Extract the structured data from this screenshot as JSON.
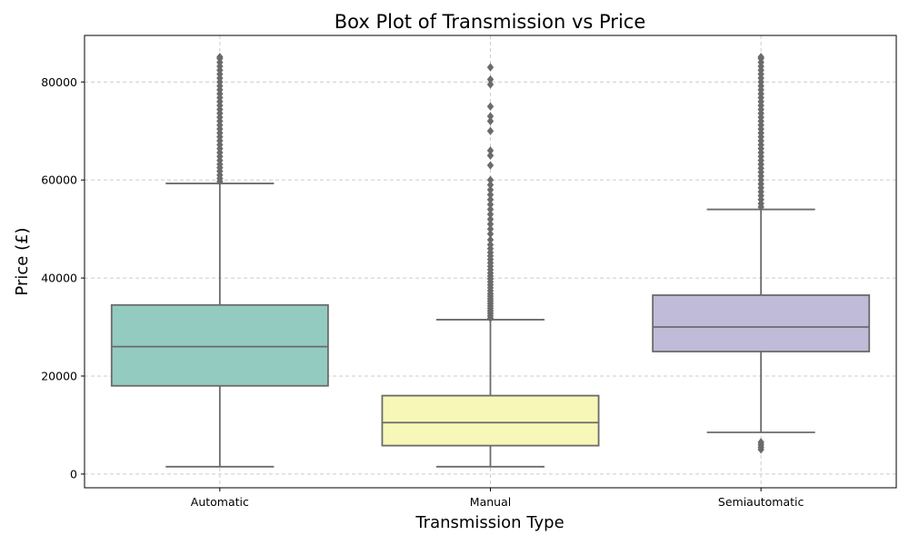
{
  "chart_data": {
    "type": "box",
    "title": "Box Plot of Transmission vs Price",
    "xlabel": "Transmission Type",
    "ylabel": "Price (£)",
    "ylim": [
      -2800,
      89500
    ],
    "yticks": [
      0,
      20000,
      40000,
      60000,
      80000
    ],
    "grid": true,
    "categories": [
      "Automatic",
      "Manual",
      "Semiautomatic"
    ],
    "boxes": [
      {
        "category": "Automatic",
        "color": "#94cbc0",
        "whisker_low": 1500,
        "q1": 18000,
        "median": 26000,
        "q3": 34500,
        "whisker_high": 59300,
        "outliers": [
          59700,
          60300,
          61000,
          61800,
          62500,
          63200,
          64000,
          64800,
          65600,
          66400,
          67200,
          68000,
          68800,
          69600,
          70400,
          71200,
          72000,
          72800,
          73600,
          74400,
          75200,
          76000,
          76800,
          77600,
          78400,
          79200,
          80000,
          80800,
          81600,
          82400,
          83200,
          84000,
          84800,
          85100
        ]
      },
      {
        "category": "Manual",
        "color": "#f7f7b8",
        "whisker_low": 1500,
        "q1": 5800,
        "median": 10500,
        "q3": 16000,
        "whisker_high": 31500,
        "outliers": [
          31800,
          32300,
          32800,
          33300,
          33800,
          34300,
          34800,
          35300,
          35800,
          36300,
          36800,
          37400,
          38000,
          38600,
          39200,
          39800,
          40400,
          41000,
          41700,
          42400,
          43100,
          43800,
          44500,
          45200,
          46000,
          46800,
          47800,
          49000,
          50000,
          51000,
          52000,
          53000,
          54000,
          55000,
          56000,
          57000,
          58000,
          59000,
          60000,
          63000,
          65000,
          66000,
          70000,
          72000,
          73000,
          75000,
          79500,
          80500,
          83000
        ]
      },
      {
        "category": "Semiautomatic",
        "color": "#bfbbd8",
        "whisker_low": 8500,
        "q1": 25000,
        "median": 30000,
        "q3": 36500,
        "whisker_high": 54000,
        "outliers": [
          5000,
          5500,
          6000,
          6500,
          54500,
          55200,
          56000,
          56800,
          57600,
          58400,
          59200,
          60000,
          60800,
          61600,
          62400,
          63200,
          64000,
          64800,
          65600,
          66400,
          67200,
          68000,
          68800,
          69600,
          70400,
          71200,
          72000,
          72800,
          73600,
          74400,
          75200,
          76000,
          76800,
          77600,
          78400,
          79200,
          80000,
          80800,
          81600,
          82400,
          83200,
          84000,
          84800,
          85100
        ]
      }
    ]
  }
}
